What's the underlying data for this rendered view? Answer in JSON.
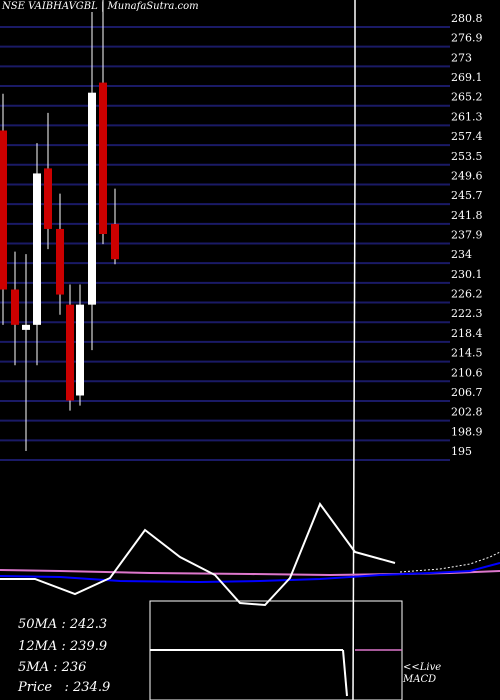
{
  "header": {
    "left": "NSE VAIBHAVGBL",
    "right": "MunafaSutra.com"
  },
  "chart_data": {
    "type": "candlestick",
    "title": "NSE VAIBHAVGBL",
    "ylim": [
      192,
      285
    ],
    "y_ticks": [
      "280.8",
      "276.9",
      "273",
      "269.1",
      "265.2",
      "261.3",
      "257.4",
      "253.5",
      "249.6",
      "245.7",
      "241.8",
      "237.9",
      "234",
      "230.1",
      "226.2",
      "222.3",
      "218.4",
      "214.5",
      "210.6",
      "206.7",
      "202.8",
      "198.9",
      "195"
    ],
    "candles": [
      {
        "open": 258.5,
        "high": 265.8,
        "low": 220.0,
        "close": 227.0,
        "color": "red"
      },
      {
        "open": 227.0,
        "high": 234.5,
        "low": 212.0,
        "close": 220.0,
        "color": "red"
      },
      {
        "open": 219.0,
        "high": 234.0,
        "low": 195.0,
        "close": 220.0,
        "color": "white"
      },
      {
        "open": 220.0,
        "high": 256.0,
        "low": 212.0,
        "close": 250.0,
        "color": "white"
      },
      {
        "open": 251.0,
        "high": 262.0,
        "low": 235.0,
        "close": 239.0,
        "color": "red"
      },
      {
        "open": 239.0,
        "high": 246.0,
        "low": 222.0,
        "close": 226.0,
        "color": "red"
      },
      {
        "open": 224.0,
        "high": 228.0,
        "low": 203.0,
        "close": 205.0,
        "color": "red"
      },
      {
        "open": 206.0,
        "high": 228.0,
        "low": 204.0,
        "close": 224.0,
        "color": "white"
      },
      {
        "open": 224.0,
        "high": 282.0,
        "low": 215.0,
        "close": 266.0,
        "color": "white"
      },
      {
        "open": 268.0,
        "high": 285.0,
        "low": 236.0,
        "close": 238.0,
        "color": "red"
      },
      {
        "open": 240.0,
        "high": 247.0,
        "low": 232.0,
        "close": 233.0,
        "color": "red"
      }
    ],
    "stats": [
      {
        "label": "50MA",
        "value": "242.3"
      },
      {
        "label": "12MA",
        "value": "239.9"
      },
      {
        "label": "5MA",
        "value": "236"
      },
      {
        "label": "Price",
        "value": "234.9"
      }
    ],
    "macd_label": [
      "<<Live",
      "MACD"
    ],
    "colors": {
      "background": "#000000",
      "grid": "#1a1a66",
      "bear": "#cc0000",
      "bull": "#ffffff",
      "ma_blue": "#0000ff",
      "ma_pink": "#dd77cc",
      "live_line": "#ffffff"
    }
  }
}
